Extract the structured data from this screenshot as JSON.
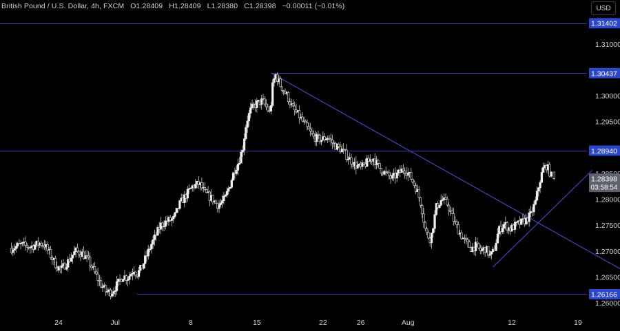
{
  "header": {
    "title": "British Pound / U.S. Dollar, 4h, FXCM",
    "open_label": "O",
    "open": "1.28409",
    "high_label": "H",
    "high": "1.28409",
    "low_label": "L",
    "low": "1.28380",
    "close_label": "C",
    "close": "1.28398",
    "change": "−0.00011 (−0.01%)"
  },
  "currency_button": "USD",
  "chart_data": {
    "type": "candlestick",
    "ylim": [
      1.258,
      1.3185
    ],
    "price_ticks": [
      "1.31000",
      "1.30000",
      "1.29500",
      "1.28500",
      "1.28000",
      "1.27500",
      "1.27000",
      "1.26500",
      "1.26000"
    ],
    "price_tick_values": [
      1.31,
      1.3,
      1.295,
      1.285,
      1.28,
      1.275,
      1.27,
      1.265,
      1.26
    ],
    "date_ticks": [
      {
        "label": "24",
        "day": 24
      },
      {
        "label": "Jul",
        "day": 30
      },
      {
        "label": "8",
        "day": 38
      },
      {
        "label": "15",
        "day": 45
      },
      {
        "label": "22",
        "day": 52
      },
      {
        "label": "26",
        "day": 56
      },
      {
        "label": "Aug",
        "day": 61
      },
      {
        "label": "12",
        "day": 72
      },
      {
        "label": "19",
        "day": 79
      }
    ],
    "horizontal_levels": [
      {
        "value": 1.31402,
        "label": "1.31402"
      },
      {
        "value": 1.30437,
        "label": "1.30437"
      },
      {
        "value": 1.2894,
        "label": "1.28940"
      },
      {
        "value": 1.26166,
        "label": "1.26166"
      }
    ],
    "current_price": {
      "value": 1.28398,
      "label": "1.28398",
      "countdown": "03:58:54"
    },
    "trendlines": [
      {
        "from": {
          "day": 46.5,
          "price": 1.3044
        },
        "to": {
          "day": 84.5,
          "price": 1.2655
        }
      },
      {
        "from": {
          "day": 70.0,
          "price": 1.2669
        },
        "to": {
          "day": 80.5,
          "price": 1.2856
        }
      }
    ],
    "path_points": [
      [
        19.0,
        1.2705
      ],
      [
        20.0,
        1.2712
      ],
      [
        21.0,
        1.2708
      ],
      [
        22.0,
        1.2715
      ],
      [
        22.5,
        1.2712
      ],
      [
        23.2,
        1.269
      ],
      [
        23.8,
        1.267
      ],
      [
        24.3,
        1.2665
      ],
      [
        25.0,
        1.268
      ],
      [
        25.8,
        1.27
      ],
      [
        26.5,
        1.2695
      ],
      [
        27.2,
        1.268
      ],
      [
        28.0,
        1.2652
      ],
      [
        28.5,
        1.2635
      ],
      [
        29.0,
        1.2622
      ],
      [
        29.6,
        1.262
      ],
      [
        30.2,
        1.2635
      ],
      [
        30.8,
        1.2652
      ],
      [
        31.3,
        1.2648
      ],
      [
        32.0,
        1.2665
      ],
      [
        32.3,
        1.2655
      ],
      [
        32.8,
        1.2668
      ],
      [
        33.3,
        1.269
      ],
      [
        33.8,
        1.2712
      ],
      [
        34.3,
        1.273
      ],
      [
        34.8,
        1.275
      ],
      [
        35.5,
        1.2758
      ],
      [
        36.2,
        1.2762
      ],
      [
        36.8,
        1.279
      ],
      [
        37.5,
        1.2808
      ],
      [
        38.2,
        1.2825
      ],
      [
        38.9,
        1.283
      ],
      [
        39.5,
        1.2812
      ],
      [
        40.3,
        1.28
      ],
      [
        40.9,
        1.2788
      ],
      [
        41.6,
        1.28
      ],
      [
        42.1,
        1.2825
      ],
      [
        42.6,
        1.2855
      ],
      [
        43.1,
        1.2873
      ],
      [
        43.5,
        1.29
      ],
      [
        43.9,
        1.295
      ],
      [
        44.4,
        1.2975
      ],
      [
        45.0,
        1.2985
      ],
      [
        45.6,
        1.299
      ],
      [
        46.1,
        1.2975
      ],
      [
        46.4,
        1.2965
      ],
      [
        46.7,
        1.3025
      ],
      [
        47.0,
        1.304
      ],
      [
        47.5,
        1.302
      ],
      [
        48.2,
        1.3
      ],
      [
        48.8,
        1.2975
      ],
      [
        49.5,
        1.296
      ],
      [
        50.2,
        1.294
      ],
      [
        51.0,
        1.292
      ],
      [
        51.8,
        1.2915
      ],
      [
        52.5,
        1.292
      ],
      [
        53.2,
        1.2905
      ],
      [
        54.0,
        1.2895
      ],
      [
        54.7,
        1.288
      ],
      [
        55.3,
        1.2868
      ],
      [
        56.0,
        1.286
      ],
      [
        56.7,
        1.2872
      ],
      [
        57.3,
        1.288
      ],
      [
        57.9,
        1.2862
      ],
      [
        58.6,
        1.285
      ],
      [
        59.3,
        1.284
      ],
      [
        60.0,
        1.285
      ],
      [
        60.6,
        1.286
      ],
      [
        61.3,
        1.2842
      ],
      [
        61.9,
        1.282
      ],
      [
        62.4,
        1.279
      ],
      [
        62.9,
        1.2735
      ],
      [
        63.4,
        1.2722
      ],
      [
        64.0,
        1.2785
      ],
      [
        64.6,
        1.28
      ],
      [
        65.2,
        1.279
      ],
      [
        65.7,
        1.2765
      ],
      [
        66.2,
        1.2745
      ],
      [
        66.7,
        1.2728
      ],
      [
        67.2,
        1.2715
      ],
      [
        67.7,
        1.2705
      ],
      [
        68.2,
        1.271
      ],
      [
        68.7,
        1.27
      ],
      [
        69.2,
        1.2705
      ],
      [
        69.7,
        1.269
      ],
      [
        70.1,
        1.27
      ],
      [
        70.6,
        1.274
      ],
      [
        71.2,
        1.2752
      ],
      [
        71.8,
        1.2742
      ],
      [
        72.4,
        1.275
      ],
      [
        73.0,
        1.2755
      ],
      [
        73.5,
        1.276
      ],
      [
        74.0,
        1.277
      ],
      [
        74.5,
        1.2795
      ],
      [
        74.9,
        1.283
      ],
      [
        75.3,
        1.2858
      ],
      [
        75.7,
        1.2865
      ],
      [
        76.0,
        1.2852
      ],
      [
        76.3,
        1.284
      ]
    ]
  }
}
